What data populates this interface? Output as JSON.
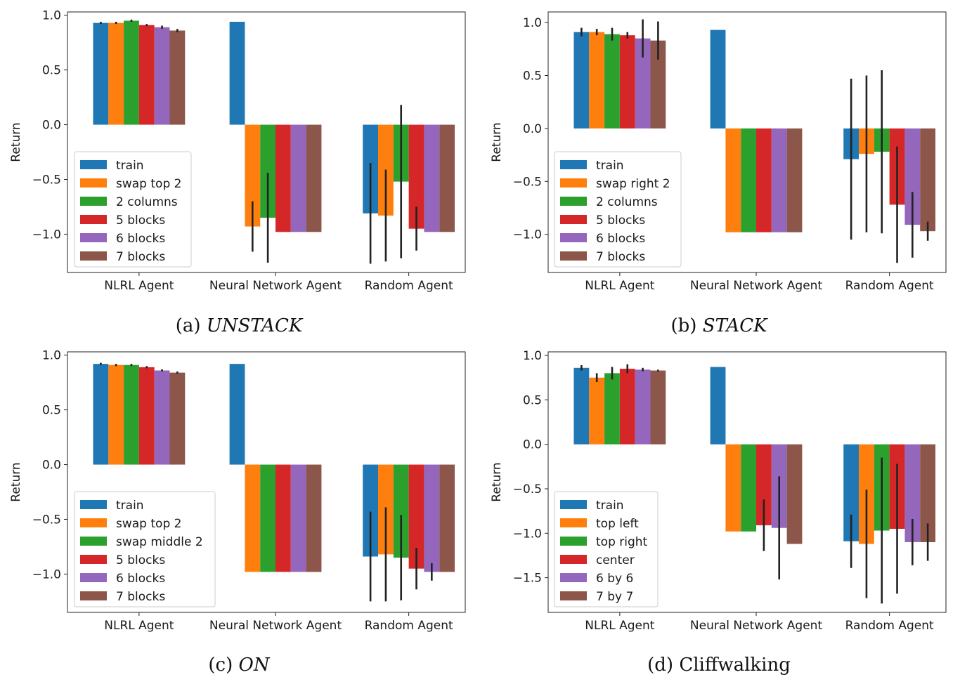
{
  "colors": [
    "#1f77b4",
    "#ff7f0e",
    "#2ca02c",
    "#d62728",
    "#9467bd",
    "#8c564b"
  ],
  "chart_data": [
    {
      "type": "bar",
      "caption_prefix": "(a) ",
      "caption_name": "UNSTACK",
      "caption_italic": true,
      "ylabel": "Return",
      "ylim": [
        -1.35,
        1.03
      ],
      "yticks": [
        1.0,
        0.5,
        0.0,
        -0.5,
        -1.0
      ],
      "ytick_labels": [
        "1.0",
        "0.5",
        "0.0",
        "−0.5",
        "−1.0"
      ],
      "categories": [
        "NLRL Agent",
        "Neural Network Agent",
        "Random Agent"
      ],
      "series": [
        {
          "name": "train",
          "values": [
            0.93,
            0.94,
            -0.81
          ],
          "errors": [
            0.01,
            0.0,
            0.46
          ]
        },
        {
          "name": "swap top 2",
          "values": [
            0.93,
            -0.93,
            -0.83
          ],
          "errors": [
            0.01,
            0.23,
            0.42
          ]
        },
        {
          "name": "2 columns",
          "values": [
            0.95,
            -0.85,
            -0.52
          ],
          "errors": [
            0.01,
            0.41,
            0.7
          ]
        },
        {
          "name": "5 blocks",
          "values": [
            0.91,
            -0.98,
            -0.95
          ],
          "errors": [
            0.01,
            0.0,
            0.2
          ]
        },
        {
          "name": "6 blocks",
          "values": [
            0.89,
            -0.98,
            -0.98
          ],
          "errors": [
            0.015,
            0.0,
            0.0
          ]
        },
        {
          "name": "7 blocks",
          "values": [
            0.86,
            -0.98,
            -0.98
          ],
          "errors": [
            0.015,
            0.0,
            0.0
          ]
        }
      ]
    },
    {
      "type": "bar",
      "caption_prefix": "(b) ",
      "caption_name": "STACK",
      "caption_italic": true,
      "ylabel": "Return",
      "ylim": [
        -1.36,
        1.1
      ],
      "yticks": [
        1.0,
        0.5,
        0.0,
        -0.5,
        -1.0
      ],
      "ytick_labels": [
        "1.0",
        "0.5",
        "0.0",
        "−0.5",
        "−1.0"
      ],
      "categories": [
        "NLRL Agent",
        "Neural Network Agent",
        "Random Agent"
      ],
      "series": [
        {
          "name": "train",
          "values": [
            0.91,
            0.93,
            -0.29
          ],
          "errors": [
            0.04,
            0.0,
            0.76
          ]
        },
        {
          "name": "swap right 2",
          "values": [
            0.91,
            -0.98,
            -0.24
          ],
          "errors": [
            0.03,
            0.0,
            0.74
          ]
        },
        {
          "name": "2 columns",
          "values": [
            0.89,
            -0.98,
            -0.22
          ],
          "errors": [
            0.06,
            0.0,
            0.77
          ]
        },
        {
          "name": "5 blocks",
          "values": [
            0.88,
            -0.98,
            -0.72
          ],
          "errors": [
            0.03,
            0.0,
            0.55
          ]
        },
        {
          "name": "6 blocks",
          "values": [
            0.85,
            -0.98,
            -0.91
          ],
          "errors": [
            0.18,
            0.0,
            0.31
          ]
        },
        {
          "name": "7 blocks",
          "values": [
            0.83,
            -0.98,
            -0.97
          ],
          "errors": [
            0.18,
            0.0,
            0.09
          ]
        }
      ]
    },
    {
      "type": "bar",
      "caption_prefix": "(c) ",
      "caption_name": "ON",
      "caption_italic": true,
      "ylabel": "Return",
      "ylim": [
        -1.35,
        1.03
      ],
      "yticks": [
        1.0,
        0.5,
        0.0,
        -0.5,
        -1.0
      ],
      "ytick_labels": [
        "1.0",
        "0.5",
        "0.0",
        "−0.5",
        "−1.0"
      ],
      "categories": [
        "NLRL Agent",
        "Neural Network Agent",
        "Random Agent"
      ],
      "series": [
        {
          "name": "train",
          "values": [
            0.92,
            0.92,
            -0.84
          ],
          "errors": [
            0.01,
            0.0,
            0.41
          ]
        },
        {
          "name": "swap top 2",
          "values": [
            0.91,
            -0.98,
            -0.82
          ],
          "errors": [
            0.01,
            0.0,
            0.43
          ]
        },
        {
          "name": "swap middle 2",
          "values": [
            0.91,
            -0.98,
            -0.85
          ],
          "errors": [
            0.01,
            0.0,
            0.39
          ]
        },
        {
          "name": "5 blocks",
          "values": [
            0.89,
            -0.98,
            -0.95
          ],
          "errors": [
            0.01,
            0.0,
            0.19
          ]
        },
        {
          "name": "6 blocks",
          "values": [
            0.86,
            -0.98,
            -0.98
          ],
          "errors": [
            0.01,
            0.0,
            0.08
          ]
        },
        {
          "name": "7 blocks",
          "values": [
            0.84,
            -0.98,
            -0.98
          ],
          "errors": [
            0.01,
            0.0,
            0.0
          ]
        }
      ]
    },
    {
      "type": "bar",
      "caption_prefix": "(d) ",
      "caption_name": "Cliffwalking",
      "caption_italic": false,
      "ylabel": "Return",
      "ylim": [
        -1.89,
        1.04
      ],
      "yticks": [
        1.0,
        0.5,
        0.0,
        -0.5,
        -1.0,
        -1.5
      ],
      "ytick_labels": [
        "1.0",
        "0.5",
        "0.0",
        "−0.5",
        "−1.0",
        "−1.5"
      ],
      "categories": [
        "NLRL Agent",
        "Neural Network Agent",
        "Random Agent"
      ],
      "series": [
        {
          "name": "train",
          "values": [
            0.86,
            0.87,
            -1.09
          ],
          "errors": [
            0.03,
            0.0,
            0.3
          ]
        },
        {
          "name": "top left",
          "values": [
            0.75,
            -0.98,
            -1.12
          ],
          "errors": [
            0.05,
            0.0,
            0.61
          ]
        },
        {
          "name": "top right",
          "values": [
            0.8,
            -0.98,
            -0.97
          ],
          "errors": [
            0.07,
            0.0,
            0.82
          ]
        },
        {
          "name": "center",
          "values": [
            0.85,
            -0.91,
            -0.95
          ],
          "errors": [
            0.05,
            0.29,
            0.73
          ]
        },
        {
          "name": "6 by 6",
          "values": [
            0.84,
            -0.94,
            -1.1
          ],
          "errors": [
            0.02,
            0.58,
            0.26
          ]
        },
        {
          "name": "7 by 7",
          "values": [
            0.83,
            -1.12,
            -1.1
          ],
          "errors": [
            0.01,
            0.0,
            0.21
          ]
        }
      ]
    }
  ]
}
